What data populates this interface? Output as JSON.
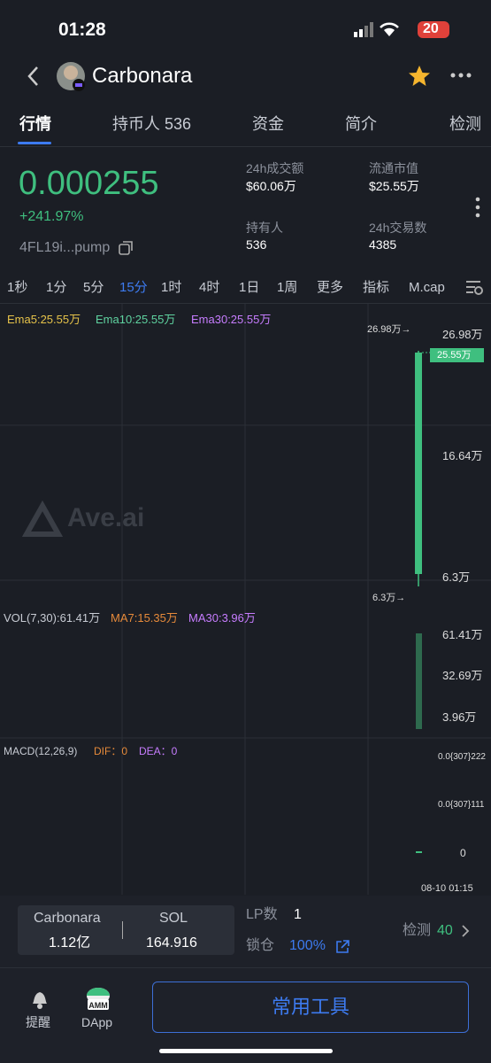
{
  "status_bar": {
    "time": "01:28",
    "battery": "20"
  },
  "header": {
    "title": "Carbonara"
  },
  "tabs": [
    "行情",
    "持币人 536",
    "资金",
    "简介",
    "检测"
  ],
  "price": {
    "value": "0.000255",
    "change": "+241.97%",
    "address": "4FL19i...pump"
  },
  "stats": [
    {
      "label": "24h成交额",
      "value": "$60.06万"
    },
    {
      "label": "流通市值",
      "value": "$25.55万"
    },
    {
      "label": "持有人",
      "value": "536"
    },
    {
      "label": "24h交易数",
      "value": "4385"
    }
  ],
  "intervals": [
    "1秒",
    "1分",
    "5分",
    "15分",
    "1时",
    "4时",
    "1日",
    "1周",
    "更多",
    "指标",
    "M.cap"
  ],
  "chart": {
    "ema": [
      "Ema5:25.55万",
      "Ema10:25.55万",
      "Ema30:25.55万"
    ],
    "price_axis": [
      "26.98万",
      "16.64万",
      "6.3万"
    ],
    "current_price": "25.55万",
    "high_marker": "26.98万→",
    "low_marker": "6.3万→",
    "watermark": "Ave.ai",
    "vol_legend": [
      "VOL(7,30):61.41万",
      "MA7:15.35万",
      "MA30:3.96万"
    ],
    "vol_axis": [
      "61.41万",
      "32.69万",
      "3.96万"
    ],
    "macd_legend": [
      "MACD(12,26,9)",
      "DIF：0",
      "DEA：0"
    ],
    "macd_axis": [
      "0.0{307}222",
      "0.0{307}111",
      "0"
    ],
    "time_label": "08-10 01:15"
  },
  "pool": {
    "token_name": "Carbonara",
    "token_amount": "1.12亿",
    "quote_name": "SOL",
    "quote_amount": "164.916",
    "lp_label": "LP数",
    "lp_value": "1",
    "lock_label": "锁仓",
    "lock_value": "100%",
    "check_label": "检测",
    "check_value": "40"
  },
  "nav": {
    "alert": "提醒",
    "dapp": "DApp",
    "tools": "常用工具"
  }
}
